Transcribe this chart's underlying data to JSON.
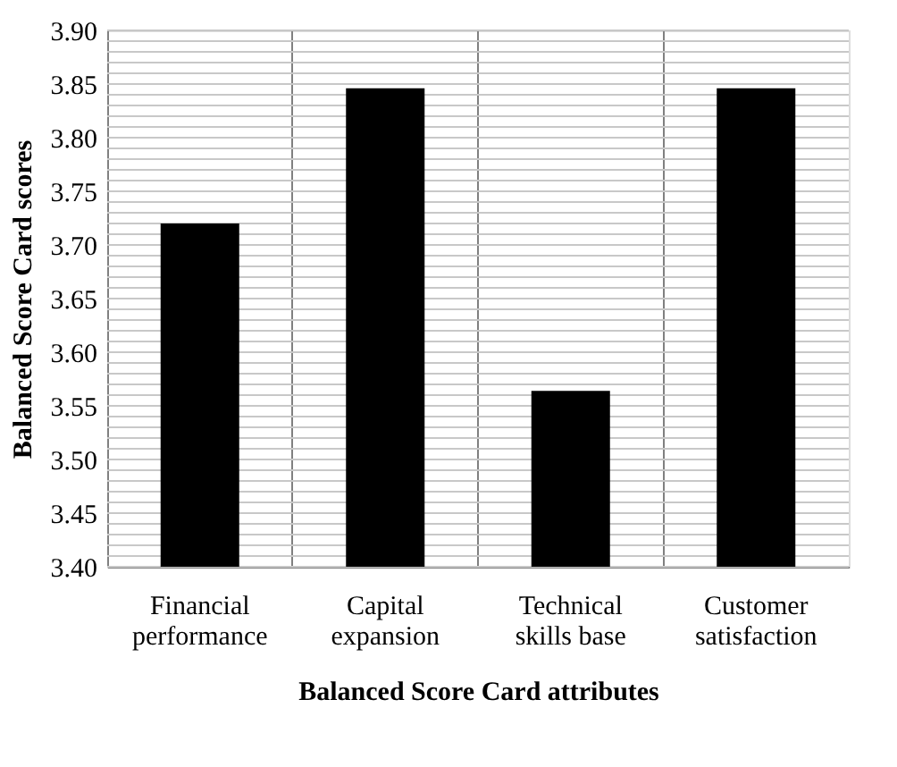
{
  "chart_data": {
    "type": "bar",
    "xlabel": "Balanced Score Card  attributes",
    "ylabel": "Balanced Score Card scores",
    "categories": [
      "Financial performance",
      "Capital expansion",
      "Technical skills base",
      "Customer satisfaction"
    ],
    "values": [
      3.72,
      3.846,
      3.564,
      3.846
    ],
    "color": "#000000",
    "ylim": [
      3.4,
      3.9
    ],
    "yticks": [
      {
        "value": 3.4,
        "label": "3.40"
      },
      {
        "value": 3.45,
        "label": "3.45"
      },
      {
        "value": 3.5,
        "label": "3.50"
      },
      {
        "value": 3.55,
        "label": "3.55"
      },
      {
        "value": 3.6,
        "label": "3.60"
      },
      {
        "value": 3.65,
        "label": "3.65"
      },
      {
        "value": 3.7,
        "label": "3.70"
      },
      {
        "value": 3.75,
        "label": "3.75"
      },
      {
        "value": 3.8,
        "label": "3.80"
      },
      {
        "value": 3.85,
        "label": "3.85"
      },
      {
        "value": 3.9,
        "label": "3.90"
      }
    ],
    "grid": true
  }
}
